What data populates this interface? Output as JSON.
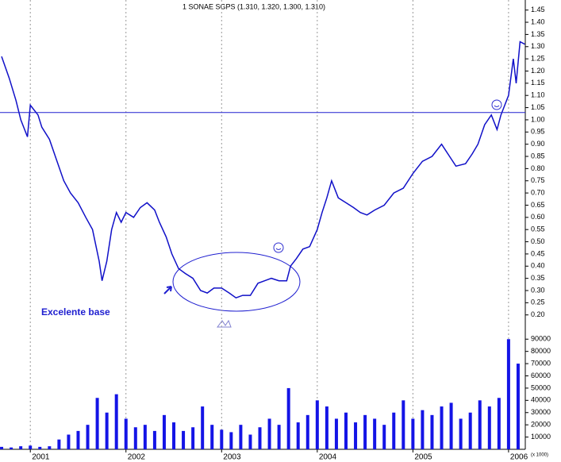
{
  "chart_data": [
    {
      "type": "line",
      "title": "1 SONAE SGPS (1.310, 1.320, 1.300, 1.310)",
      "annotation": "Excelente base",
      "color": "#1010c8",
      "hline": 1.03,
      "xlim": [
        2000.683,
        2006.175
      ],
      "xticks": [
        2001,
        2002,
        2003,
        2004,
        2005,
        2006
      ],
      "ylim": [
        0.175,
        1.475
      ],
      "yticks": [
        {
          "value": 0.2,
          "label": "0.20"
        },
        0.25,
        {
          "value": 0.3,
          "label": "0.30"
        },
        0.35,
        {
          "value": 0.4,
          "label": "0.40"
        },
        0.45,
        {
          "value": 0.5,
          "label": "0.50"
        },
        0.55,
        {
          "value": 0.6,
          "label": "0.60"
        },
        0.65,
        {
          "value": 0.7,
          "label": "0.70"
        },
        0.75,
        {
          "value": 0.8,
          "label": "0.80"
        },
        0.85,
        {
          "value": 0.9,
          "label": "0.90"
        },
        0.95,
        {
          "value": 1,
          "label": "1.00"
        },
        1.05,
        {
          "value": 1.1,
          "label": "1.10"
        },
        1.15,
        {
          "value": 1.2,
          "label": "1.20"
        },
        1.25,
        {
          "value": 1.3,
          "label": "1.30"
        },
        1.35,
        {
          "value": 1.4,
          "label": "1.40"
        },
        1.45
      ],
      "x": [
        2000.7,
        2000.78,
        2000.85,
        2000.9,
        2000.97,
        2001.0,
        2001.08,
        2001.12,
        2001.2,
        2001.27,
        2001.35,
        2001.42,
        2001.5,
        2001.58,
        2001.65,
        2001.72,
        2001.75,
        2001.8,
        2001.85,
        2001.9,
        2001.95,
        2002.0,
        2002.08,
        2002.15,
        2002.22,
        2002.3,
        2002.35,
        2002.42,
        2002.48,
        2002.55,
        2002.62,
        2002.7,
        2002.78,
        2002.85,
        2002.92,
        2003.0,
        2003.08,
        2003.15,
        2003.22,
        2003.3,
        2003.38,
        2003.45,
        2003.52,
        2003.6,
        2003.68,
        2003.72,
        2003.78,
        2003.85,
        2003.92,
        2004.0,
        2004.05,
        2004.1,
        2004.15,
        2004.22,
        2004.3,
        2004.38,
        2004.45,
        2004.52,
        2004.6,
        2004.7,
        2004.8,
        2004.9,
        2005.0,
        2005.1,
        2005.2,
        2005.3,
        2005.4,
        2005.45,
        2005.55,
        2005.62,
        2005.68,
        2005.75,
        2005.82,
        2005.88,
        2005.92,
        2006.0,
        2006.05,
        2006.08,
        2006.12,
        2006.17
      ],
      "values": [
        1.26,
        1.17,
        1.08,
        1.0,
        0.93,
        1.06,
        1.02,
        0.97,
        0.92,
        0.84,
        0.75,
        0.7,
        0.66,
        0.6,
        0.55,
        0.42,
        0.34,
        0.42,
        0.55,
        0.62,
        0.58,
        0.62,
        0.6,
        0.64,
        0.66,
        0.63,
        0.58,
        0.52,
        0.45,
        0.39,
        0.37,
        0.35,
        0.3,
        0.29,
        0.31,
        0.31,
        0.29,
        0.27,
        0.28,
        0.28,
        0.33,
        0.34,
        0.35,
        0.34,
        0.34,
        0.4,
        0.43,
        0.47,
        0.48,
        0.55,
        0.62,
        0.68,
        0.75,
        0.68,
        0.66,
        0.64,
        0.62,
        0.61,
        0.63,
        0.65,
        0.7,
        0.72,
        0.78,
        0.83,
        0.85,
        0.9,
        0.84,
        0.81,
        0.82,
        0.86,
        0.9,
        0.98,
        1.02,
        0.96,
        1.02,
        1.1,
        1.25,
        1.15,
        1.32,
        1.31
      ]
    },
    {
      "type": "bar",
      "color": "#1414e6",
      "unit_label": "(x 1000)",
      "xlim": [
        2000.683,
        2006.175
      ],
      "ylim": [
        0,
        96000
      ],
      "yticks": [
        10000,
        20000,
        30000,
        40000,
        50000,
        60000,
        70000,
        80000,
        90000
      ],
      "x": [
        2000.7,
        2000.8,
        2000.9,
        2001.0,
        2001.1,
        2001.2,
        2001.3,
        2001.4,
        2001.5,
        2001.6,
        2001.7,
        2001.8,
        2001.9,
        2002.0,
        2002.1,
        2002.2,
        2002.3,
        2002.4,
        2002.5,
        2002.6,
        2002.7,
        2002.8,
        2002.9,
        2003.0,
        2003.1,
        2003.2,
        2003.3,
        2003.4,
        2003.5,
        2003.6,
        2003.7,
        2003.8,
        2003.9,
        2004.0,
        2004.1,
        2004.2,
        2004.3,
        2004.4,
        2004.5,
        2004.6,
        2004.7,
        2004.8,
        2004.9,
        2005.0,
        2005.1,
        2005.2,
        2005.3,
        2005.4,
        2005.5,
        2005.6,
        2005.7,
        2005.8,
        2005.9,
        2006.0,
        2006.1
      ],
      "values": [
        2000,
        1500,
        2500,
        3000,
        2000,
        2500,
        8000,
        12000,
        15000,
        20000,
        42000,
        30000,
        45000,
        25000,
        18000,
        20000,
        15000,
        28000,
        22000,
        15000,
        18000,
        35000,
        20000,
        16000,
        14000,
        20000,
        12000,
        18000,
        25000,
        20000,
        50000,
        22000,
        28000,
        40000,
        35000,
        25000,
        30000,
        22000,
        28000,
        25000,
        20000,
        30000,
        40000,
        25000,
        32000,
        28000,
        35000,
        38000,
        25000,
        30000,
        40000,
        35000,
        42000,
        90000,
        70000
      ]
    }
  ]
}
